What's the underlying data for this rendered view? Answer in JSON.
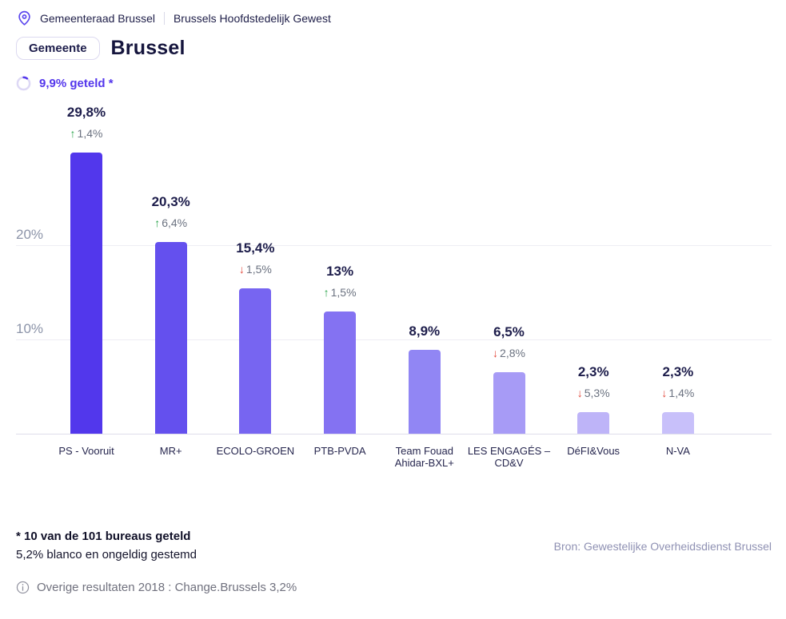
{
  "accent": "#5336ec",
  "breadcrumb": {
    "items": [
      "Gemeenteraad Brussel",
      "Brussels Hoofdstedelijk Gewest"
    ]
  },
  "header": {
    "badge": "Gemeente",
    "title": "Brussel",
    "counted_label": "9,9% geteld *",
    "counted_pct": 9.9
  },
  "chart_data": {
    "type": "bar",
    "title": "",
    "categories": [
      "PS - Vooruit",
      "MR+",
      "ECOLO-GROEN",
      "PTB-PVDA",
      "Team Fouad\nAhidar-BXL+",
      "LES ENGAGÉS –\nCD&V",
      "DéFI&Vous",
      "N-VA"
    ],
    "values": [
      29.8,
      20.3,
      15.4,
      13,
      8.9,
      6.5,
      2.3,
      2.3
    ],
    "value_labels": [
      "29,8%",
      "20,3%",
      "15,4%",
      "13%",
      "8,9%",
      "6,5%",
      "2,3%",
      "2,3%"
    ],
    "changes": [
      {
        "dir": "up",
        "label": "1,4%"
      },
      {
        "dir": "up",
        "label": "6,4%"
      },
      {
        "dir": "down",
        "label": "1,5%"
      },
      {
        "dir": "up",
        "label": "1,5%"
      },
      null,
      {
        "dir": "down",
        "label": "2,8%"
      },
      {
        "dir": "down",
        "label": "5,3%"
      },
      {
        "dir": "down",
        "label": "1,4%"
      }
    ],
    "bar_colors": [
      "#5237ec",
      "#6450ee",
      "#7765f1",
      "#8472f2",
      "#9186f4",
      "#a79bf6",
      "#beb4f8",
      "#c8c0fa"
    ],
    "yticks": [
      "10%",
      "20%"
    ],
    "ytick_values": [
      10,
      20
    ],
    "ylim": [
      0,
      33
    ],
    "grid": true,
    "legend": false,
    "up_color": "#27a348",
    "down_color": "#e2473a"
  },
  "footer": {
    "note_bold": "* 10 van de 101 bureaus geteld",
    "note": "5,2% blanco en ongeldig gestemd",
    "source": "Bron: Gewestelijke Overheidsdienst Brussel",
    "info": "Overige resultaten 2018 : Change.Brussels 3,2%"
  }
}
